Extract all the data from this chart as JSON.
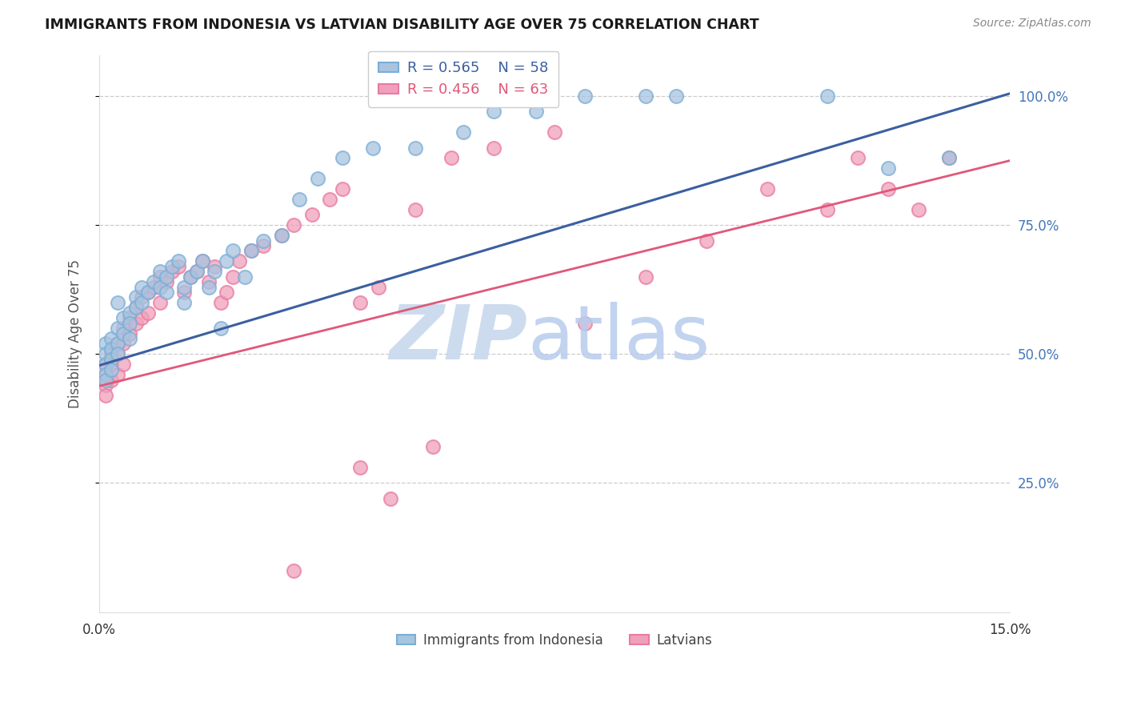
{
  "title": "IMMIGRANTS FROM INDONESIA VS LATVIAN DISABILITY AGE OVER 75 CORRELATION CHART",
  "source": "Source: ZipAtlas.com",
  "ylabel": "Disability Age Over 75",
  "xlim": [
    0.0,
    0.15
  ],
  "ylim": [
    0.0,
    1.08
  ],
  "xtick_positions": [
    0.0,
    0.025,
    0.05,
    0.075,
    0.1,
    0.125,
    0.15
  ],
  "xticklabels": [
    "0.0%",
    "",
    "",
    "",
    "",
    "",
    "15.0%"
  ],
  "ytick_positions": [
    0.25,
    0.5,
    0.75,
    1.0
  ],
  "yticklabels": [
    "25.0%",
    "50.0%",
    "75.0%",
    "100.0%"
  ],
  "blue_face_color": "#A8C4E0",
  "blue_edge_color": "#7AAED6",
  "pink_face_color": "#F0A0BC",
  "pink_edge_color": "#E87AA0",
  "blue_line_color": "#3B5FA0",
  "pink_line_color": "#E05878",
  "blue_line_x0": 0.0,
  "blue_line_y0": 0.478,
  "blue_line_x1": 0.15,
  "blue_line_y1": 1.005,
  "pink_line_x0": 0.0,
  "pink_line_y0": 0.438,
  "pink_line_x1": 0.15,
  "pink_line_y1": 0.875,
  "legend_blue_r": "R = 0.565",
  "legend_blue_n": "N = 58",
  "legend_pink_r": "R = 0.456",
  "legend_pink_n": "N = 63",
  "legend_blue_label": "Immigrants from Indonesia",
  "legend_pink_label": "Latvians",
  "title_color": "#1A1A1A",
  "source_color": "#888888",
  "ylabel_color": "#555555",
  "ytick_color": "#4477BB",
  "xtick_color": "#333333",
  "grid_color": "#CCCCCC",
  "background_color": "#FFFFFF",
  "watermark_zip_color": "#C8D8EE",
  "watermark_atlas_color": "#B8CCEE",
  "blue_scatter_x": [
    0.001,
    0.001,
    0.001,
    0.001,
    0.001,
    0.002,
    0.002,
    0.002,
    0.002,
    0.003,
    0.003,
    0.003,
    0.003,
    0.004,
    0.004,
    0.005,
    0.005,
    0.005,
    0.006,
    0.006,
    0.007,
    0.007,
    0.008,
    0.009,
    0.01,
    0.01,
    0.011,
    0.011,
    0.012,
    0.013,
    0.014,
    0.014,
    0.015,
    0.016,
    0.017,
    0.018,
    0.019,
    0.02,
    0.021,
    0.022,
    0.024,
    0.025,
    0.027,
    0.03,
    0.033,
    0.036,
    0.04,
    0.045,
    0.052,
    0.06,
    0.065,
    0.072,
    0.08,
    0.09,
    0.095,
    0.12,
    0.13,
    0.14
  ],
  "blue_scatter_y": [
    0.52,
    0.5,
    0.48,
    0.46,
    0.45,
    0.53,
    0.51,
    0.49,
    0.47,
    0.6,
    0.55,
    0.52,
    0.5,
    0.57,
    0.54,
    0.58,
    0.56,
    0.53,
    0.61,
    0.59,
    0.63,
    0.6,
    0.62,
    0.64,
    0.66,
    0.63,
    0.65,
    0.62,
    0.67,
    0.68,
    0.63,
    0.6,
    0.65,
    0.66,
    0.68,
    0.63,
    0.66,
    0.55,
    0.68,
    0.7,
    0.65,
    0.7,
    0.72,
    0.73,
    0.8,
    0.84,
    0.88,
    0.9,
    0.9,
    0.93,
    0.97,
    0.97,
    1.0,
    1.0,
    1.0,
    1.0,
    0.86,
    0.88
  ],
  "pink_scatter_x": [
    0.001,
    0.001,
    0.001,
    0.001,
    0.002,
    0.002,
    0.002,
    0.003,
    0.003,
    0.003,
    0.004,
    0.004,
    0.004,
    0.005,
    0.005,
    0.006,
    0.006,
    0.007,
    0.007,
    0.008,
    0.008,
    0.009,
    0.01,
    0.01,
    0.011,
    0.012,
    0.013,
    0.014,
    0.015,
    0.016,
    0.017,
    0.018,
    0.019,
    0.02,
    0.021,
    0.022,
    0.023,
    0.025,
    0.027,
    0.03,
    0.032,
    0.035,
    0.038,
    0.04,
    0.043,
    0.046,
    0.052,
    0.058,
    0.065,
    0.075,
    0.08,
    0.09,
    0.1,
    0.11,
    0.12,
    0.125,
    0.13,
    0.135,
    0.14,
    0.043,
    0.048,
    0.055,
    0.032
  ],
  "pink_scatter_y": [
    0.48,
    0.46,
    0.44,
    0.42,
    0.5,
    0.48,
    0.45,
    0.52,
    0.5,
    0.46,
    0.55,
    0.52,
    0.48,
    0.57,
    0.54,
    0.59,
    0.56,
    0.61,
    0.57,
    0.62,
    0.58,
    0.63,
    0.65,
    0.6,
    0.64,
    0.66,
    0.67,
    0.62,
    0.65,
    0.66,
    0.68,
    0.64,
    0.67,
    0.6,
    0.62,
    0.65,
    0.68,
    0.7,
    0.71,
    0.73,
    0.75,
    0.77,
    0.8,
    0.82,
    0.6,
    0.63,
    0.78,
    0.88,
    0.9,
    0.93,
    0.56,
    0.65,
    0.72,
    0.82,
    0.78,
    0.88,
    0.82,
    0.78,
    0.88,
    0.28,
    0.22,
    0.32,
    0.08
  ]
}
